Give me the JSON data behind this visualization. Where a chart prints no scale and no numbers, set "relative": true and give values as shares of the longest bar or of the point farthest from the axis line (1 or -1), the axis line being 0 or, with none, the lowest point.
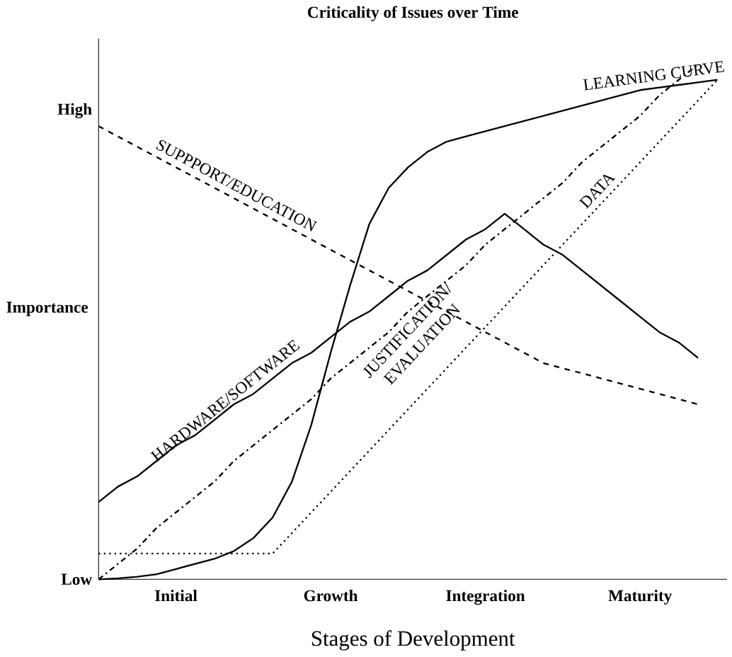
{
  "chart_data": {
    "type": "line",
    "title": "Criticality of Issues over Time",
    "xlabel": "Stages of Development",
    "ylabel": "Importance",
    "relative": true,
    "grid": false,
    "categories": [
      null,
      null,
      null,
      null,
      "Initial",
      null,
      null,
      null,
      null,
      null,
      null,
      null,
      "Growth",
      null,
      null,
      null,
      null,
      null,
      null,
      null,
      "Integration",
      null,
      null,
      null,
      null,
      null,
      null,
      null,
      "Maturity",
      null,
      null,
      null,
      null
    ],
    "annotations": [
      "High",
      "Low"
    ],
    "series": [
      {
        "name": "LEARNING CURVE",
        "color": "#000000",
        "line_style": "solid",
        "values": [
          0,
          0.002,
          0.005,
          0.01,
          0.02,
          0.03,
          0.04,
          0.055,
          0.08,
          0.12,
          0.19,
          0.3,
          0.44,
          0.57,
          0.69,
          0.76,
          0.8,
          0.83,
          0.85,
          0.86,
          0.87,
          0.88,
          0.89,
          0.9,
          0.91,
          0.92,
          0.93,
          0.94,
          0.95,
          0.955,
          0.96,
          0.965,
          0.97
        ]
      },
      {
        "name": "SUPPPORT/EDUCATION",
        "color": "#000000",
        "line_style": "dashed",
        "values": [
          0.88,
          0.86,
          0.84,
          0.82,
          0.8,
          0.78,
          0.76,
          0.74,
          0.72,
          0.7,
          0.68,
          0.66,
          0.64,
          0.62,
          0.6,
          0.58,
          0.56,
          0.54,
          0.52,
          0.5,
          0.48,
          0.46,
          0.44,
          0.42,
          0.41,
          0.4,
          0.39,
          0.38,
          0.37,
          0.36,
          0.35,
          0.34,
          null
        ]
      },
      {
        "name": "HARDWARE/SOFTWARE",
        "color": "#000000",
        "line_style": "solid",
        "values": [
          0.15,
          0.18,
          0.2,
          0.23,
          0.26,
          0.28,
          0.31,
          0.34,
          0.36,
          0.39,
          0.42,
          0.44,
          0.47,
          0.5,
          0.52,
          0.55,
          0.58,
          0.6,
          0.63,
          0.66,
          0.68,
          0.71,
          0.68,
          0.65,
          0.63,
          0.6,
          0.57,
          0.54,
          0.51,
          0.48,
          0.46,
          0.43,
          null
        ]
      },
      {
        "name": "JUSTIFICATION/ EVALUATION",
        "color": "#000000",
        "line_style": "dashdotted",
        "values": [
          0,
          0.03,
          0.06,
          0.1,
          0.13,
          0.16,
          0.19,
          0.23,
          0.26,
          0.29,
          0.32,
          0.35,
          0.39,
          0.42,
          0.45,
          0.48,
          0.52,
          0.55,
          0.58,
          0.61,
          0.65,
          0.68,
          0.71,
          0.74,
          0.77,
          0.81,
          0.84,
          0.87,
          0.9,
          0.94,
          0.97,
          1.0,
          null
        ]
      },
      {
        "name": "DATA",
        "color": "#000000",
        "line_style": "dotted",
        "values": [
          0.05,
          0.05,
          0.05,
          0.05,
          0.05,
          0.05,
          0.05,
          0.05,
          0.05,
          0.05,
          0.09,
          0.13,
          0.17,
          0.21,
          0.25,
          0.29,
          0.33,
          0.37,
          0.41,
          0.45,
          0.49,
          0.53,
          0.57,
          0.61,
          0.65,
          0.69,
          0.73,
          0.77,
          0.81,
          0.85,
          0.89,
          0.93,
          0.97
        ]
      }
    ]
  }
}
